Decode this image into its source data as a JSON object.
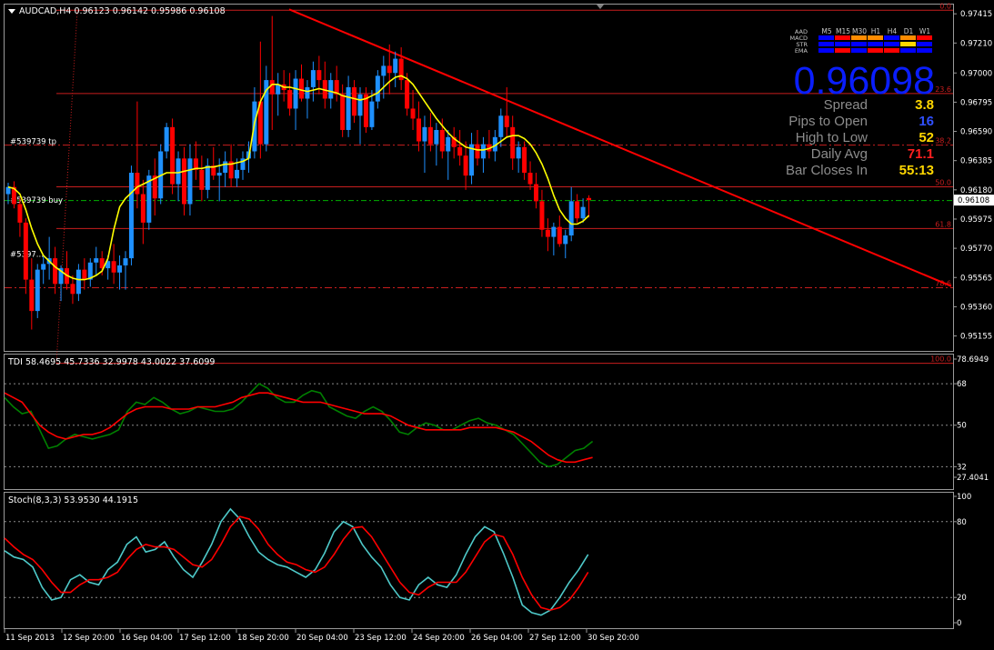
{
  "header": {
    "symbol_line": "AUDCAD,H4  0.96123 0.96142 0.95986 0.96108"
  },
  "chart_data": [
    {
      "type": "candlestick",
      "symbol": "AUDCAD",
      "timeframe": "H4",
      "ohlc_header": {
        "open": 0.96123,
        "high": 0.96142,
        "low": 0.95986,
        "close": 0.96108
      },
      "ylim": [
        0.9505,
        0.9748
      ],
      "y_ticks": [
        "0.97415",
        "0.97210",
        "0.97000",
        "0.96795",
        "0.96590",
        "0.96385",
        "0.96180",
        "0.95975",
        "0.95770",
        "0.95565",
        "0.95360",
        "0.95155"
      ],
      "current_price_label": "0.96108",
      "colors": {
        "bull": "#1e90ff",
        "bear": "#ff0000",
        "ma": "#ffff00",
        "trend": "#ff0000",
        "fib": "#c81e1e",
        "grid": "#808080"
      },
      "candles_ohlc": [
        [
          0.9615,
          0.9623,
          0.9608,
          0.962
        ],
        [
          0.962,
          0.9624,
          0.9605,
          0.9608
        ],
        [
          0.9608,
          0.9612,
          0.9585,
          0.9595
        ],
        [
          0.9595,
          0.9598,
          0.9545,
          0.9555
        ],
        [
          0.9555,
          0.957,
          0.952,
          0.9533
        ],
        [
          0.9533,
          0.9566,
          0.9528,
          0.9562
        ],
        [
          0.9562,
          0.9572,
          0.9552,
          0.9566
        ],
        [
          0.9566,
          0.9585,
          0.9555,
          0.957
        ],
        [
          0.957,
          0.9578,
          0.9545,
          0.9552
        ],
        [
          0.9552,
          0.9565,
          0.954,
          0.9563
        ],
        [
          0.9563,
          0.9575,
          0.9548,
          0.9552
        ],
        [
          0.9552,
          0.9558,
          0.9538,
          0.9545
        ],
        [
          0.9545,
          0.9566,
          0.954,
          0.9562
        ],
        [
          0.9562,
          0.957,
          0.9548,
          0.9555
        ],
        [
          0.9555,
          0.957,
          0.955,
          0.9567
        ],
        [
          0.9567,
          0.9578,
          0.9558,
          0.957
        ],
        [
          0.957,
          0.9575,
          0.9558,
          0.9563
        ],
        [
          0.9563,
          0.9572,
          0.9555,
          0.9568
        ],
        [
          0.9568,
          0.958,
          0.9552,
          0.956
        ],
        [
          0.956,
          0.9572,
          0.9548,
          0.9565
        ],
        [
          0.9565,
          0.9575,
          0.9548,
          0.957
        ],
        [
          0.957,
          0.9635,
          0.9565,
          0.963
        ],
        [
          0.963,
          0.968,
          0.9605,
          0.9615
        ],
        [
          0.9615,
          0.9625,
          0.958,
          0.9595
        ],
        [
          0.9595,
          0.9632,
          0.959,
          0.9628
        ],
        [
          0.9628,
          0.964,
          0.96,
          0.9612
        ],
        [
          0.9612,
          0.965,
          0.9608,
          0.9645
        ],
        [
          0.9645,
          0.9665,
          0.964,
          0.9662
        ],
        [
          0.9662,
          0.9668,
          0.9615,
          0.9622
        ],
        [
          0.9622,
          0.9645,
          0.961,
          0.964
        ],
        [
          0.964,
          0.9648,
          0.96,
          0.9608
        ],
        [
          0.9608,
          0.965,
          0.96,
          0.964
        ],
        [
          0.964,
          0.9652,
          0.9625,
          0.9632
        ],
        [
          0.9632,
          0.9642,
          0.961,
          0.9618
        ],
        [
          0.9618,
          0.964,
          0.9612,
          0.9635
        ],
        [
          0.9635,
          0.9648,
          0.9625,
          0.9628
        ],
        [
          0.9628,
          0.964,
          0.961,
          0.963
        ],
        [
          0.963,
          0.9645,
          0.962,
          0.9638
        ],
        [
          0.9638,
          0.965,
          0.962,
          0.9626
        ],
        [
          0.9626,
          0.964,
          0.962,
          0.9632
        ],
        [
          0.9632,
          0.9645,
          0.9625,
          0.964
        ],
        [
          0.964,
          0.9652,
          0.963,
          0.9645
        ],
        [
          0.9645,
          0.969,
          0.964,
          0.968
        ],
        [
          0.968,
          0.9722,
          0.964,
          0.965
        ],
        [
          0.965,
          0.9705,
          0.9645,
          0.9695
        ],
        [
          0.9695,
          0.974,
          0.966,
          0.9685
        ],
        [
          0.9685,
          0.97,
          0.967,
          0.9692
        ],
        [
          0.9692,
          0.9702,
          0.968,
          0.9688
        ],
        [
          0.9688,
          0.97,
          0.967,
          0.9675
        ],
        [
          0.9675,
          0.9702,
          0.966,
          0.9696
        ],
        [
          0.9696,
          0.9706,
          0.968,
          0.9682
        ],
        [
          0.9682,
          0.9695,
          0.9668,
          0.969
        ],
        [
          0.969,
          0.9708,
          0.968,
          0.9702
        ],
        [
          0.9702,
          0.9712,
          0.9685,
          0.9695
        ],
        [
          0.9695,
          0.9708,
          0.9675,
          0.9682
        ],
        [
          0.9682,
          0.97,
          0.9675,
          0.9695
        ],
        [
          0.9695,
          0.9705,
          0.968,
          0.9685
        ],
        [
          0.9685,
          0.9692,
          0.9655,
          0.966
        ],
        [
          0.966,
          0.9698,
          0.9655,
          0.969
        ],
        [
          0.969,
          0.9695,
          0.9665,
          0.967
        ],
        [
          0.967,
          0.969,
          0.965,
          0.9685
        ],
        [
          0.9685,
          0.969,
          0.9658,
          0.9662
        ],
        [
          0.9662,
          0.9688,
          0.966,
          0.968
        ],
        [
          0.968,
          0.9702,
          0.9675,
          0.9698
        ],
        [
          0.9698,
          0.9712,
          0.9682,
          0.9705
        ],
        [
          0.9705,
          0.972,
          0.9685,
          0.97
        ],
        [
          0.97,
          0.9715,
          0.969,
          0.971
        ],
        [
          0.971,
          0.9718,
          0.9688,
          0.9695
        ],
        [
          0.9695,
          0.97,
          0.967,
          0.9675
        ],
        [
          0.9675,
          0.9688,
          0.966,
          0.9668
        ],
        [
          0.9668,
          0.968,
          0.9645,
          0.9652
        ],
        [
          0.9652,
          0.967,
          0.963,
          0.9662
        ],
        [
          0.9662,
          0.9672,
          0.9645,
          0.965
        ],
        [
          0.965,
          0.9665,
          0.9635,
          0.966
        ],
        [
          0.966,
          0.9668,
          0.964,
          0.9645
        ],
        [
          0.9645,
          0.966,
          0.9625,
          0.9655
        ],
        [
          0.9655,
          0.9662,
          0.964,
          0.9648
        ],
        [
          0.9648,
          0.966,
          0.9635,
          0.9642
        ],
        [
          0.9642,
          0.9652,
          0.9618,
          0.9628
        ],
        [
          0.9628,
          0.9658,
          0.9622,
          0.965
        ],
        [
          0.965,
          0.966,
          0.9635,
          0.964
        ],
        [
          0.964,
          0.9655,
          0.963,
          0.965
        ],
        [
          0.965,
          0.966,
          0.964,
          0.9645
        ],
        [
          0.9645,
          0.966,
          0.9638,
          0.9655
        ],
        [
          0.9655,
          0.9675,
          0.9648,
          0.967
        ],
        [
          0.967,
          0.969,
          0.9655,
          0.9662
        ],
        [
          0.9662,
          0.967,
          0.9632,
          0.964
        ],
        [
          0.964,
          0.9652,
          0.963,
          0.9648
        ],
        [
          0.9648,
          0.9652,
          0.9625,
          0.963
        ],
        [
          0.963,
          0.9638,
          0.9618,
          0.9622
        ],
        [
          0.9622,
          0.963,
          0.9605,
          0.961
        ],
        [
          0.961,
          0.9618,
          0.9585,
          0.959
        ],
        [
          0.959,
          0.9598,
          0.9575,
          0.9585
        ],
        [
          0.9585,
          0.9595,
          0.9572,
          0.9592
        ],
        [
          0.9592,
          0.96,
          0.9578,
          0.958
        ],
        [
          0.958,
          0.959,
          0.957,
          0.9586
        ],
        [
          0.9586,
          0.962,
          0.9582,
          0.961
        ],
        [
          0.961,
          0.9615,
          0.9595,
          0.9598
        ],
        [
          0.9598,
          0.9612,
          0.9595,
          0.9606
        ],
        [
          0.96123,
          0.96142,
          0.95986,
          0.96108
        ]
      ],
      "ma_values": [
        0.962,
        0.9619,
        0.9615,
        0.9604,
        0.9591,
        0.958,
        0.9572,
        0.9568,
        0.9564,
        0.9561,
        0.9558,
        0.9556,
        0.9555,
        0.9555,
        0.9556,
        0.9558,
        0.9561,
        0.957,
        0.959,
        0.9606,
        0.9612,
        0.9616,
        0.962,
        0.9622,
        0.9624,
        0.9626,
        0.9628,
        0.963,
        0.963,
        0.963,
        0.9631,
        0.9632,
        0.9633,
        0.9633,
        0.9634,
        0.9634,
        0.9635,
        0.9636,
        0.9636,
        0.9637,
        0.9638,
        0.964,
        0.9665,
        0.968,
        0.9688,
        0.9692,
        0.9692,
        0.969,
        0.969,
        0.9689,
        0.9688,
        0.9687,
        0.9688,
        0.9689,
        0.9688,
        0.9687,
        0.9686,
        0.9684,
        0.9683,
        0.9682,
        0.9681,
        0.9682,
        0.9684,
        0.9686,
        0.969,
        0.9694,
        0.9697,
        0.9698,
        0.9696,
        0.9692,
        0.9686,
        0.968,
        0.9674,
        0.9668,
        0.9663,
        0.9658,
        0.9654,
        0.9651,
        0.9648,
        0.9647,
        0.9646,
        0.9646,
        0.9647,
        0.9649,
        0.9652,
        0.9655,
        0.9656,
        0.9656,
        0.9654,
        0.965,
        0.9644,
        0.9636,
        0.9626,
        0.9614,
        0.9604,
        0.9598,
        0.9594,
        0.9594,
        0.9596,
        0.96
      ],
      "fib_levels": [
        {
          "label": "0.0",
          "price": 0.9744
        },
        {
          "label": "23.6",
          "price": 0.96856
        },
        {
          "label": "38.2",
          "price": 0.96494
        },
        {
          "label": "50.0",
          "price": 0.96201
        },
        {
          "label": "61.8",
          "price": 0.95909
        },
        {
          "label": "78.6",
          "price": 0.95493
        },
        {
          "label": "100.0",
          "price": 0.94963
        }
      ],
      "order_labels": [
        {
          "text": "#539739 tp",
          "price": 0.9652
        },
        {
          "text": "#539739 buy",
          "price": 0.9611
        },
        {
          "text": "#5397...",
          "price": 0.9573
        }
      ]
    },
    {
      "type": "line",
      "name": "TDI",
      "title": "TDI 58.4695 45.7336 32.9978 43.0022 37.6099",
      "ylim": [
        27.4041,
        78.6949
      ],
      "y_ticks": [
        "78.6949",
        "68",
        "50",
        "32",
        "27.4041"
      ],
      "levels": [
        68,
        50,
        32
      ],
      "series": [
        {
          "color": "#008000",
          "values": [
            62,
            58,
            55,
            56,
            48,
            40,
            41,
            44,
            46,
            45,
            44,
            45,
            46,
            48,
            56,
            60,
            59,
            62,
            60,
            57,
            55,
            56,
            58,
            57,
            56,
            56,
            57,
            60,
            64,
            68,
            66,
            62,
            60,
            60,
            63,
            65,
            64,
            58,
            56,
            54,
            53,
            56,
            58,
            56,
            52,
            47,
            46,
            49,
            51,
            50,
            48,
            48,
            50,
            52,
            53,
            51,
            50,
            48,
            46,
            42,
            38,
            34,
            32,
            33,
            36,
            39,
            40,
            43
          ]
        },
        {
          "color": "#ff0000",
          "values": [
            64,
            62,
            60,
            55,
            50,
            47,
            45,
            44,
            45,
            46,
            46,
            47,
            49,
            52,
            55,
            57,
            58,
            58,
            58,
            57,
            57,
            57,
            58,
            58,
            58,
            59,
            60,
            62,
            63,
            64,
            64,
            63,
            62,
            61,
            60,
            60,
            60,
            59,
            58,
            57,
            56,
            55,
            55,
            55,
            54,
            52,
            50,
            49,
            48,
            48,
            48,
            48,
            48,
            49,
            49,
            49,
            49,
            48,
            47,
            45,
            43,
            40,
            37,
            35,
            34,
            34,
            35,
            36
          ]
        }
      ]
    },
    {
      "type": "line",
      "name": "Stoch",
      "title": "Stoch(8,3,3) 53.9530 44.1915",
      "ylim": [
        0,
        100
      ],
      "y_ticks": [
        "100",
        "80",
        "20",
        "0"
      ],
      "levels": [
        80,
        20
      ],
      "series": [
        {
          "color": "#4ec9c9",
          "values": [
            57,
            52,
            50,
            44,
            28,
            18,
            20,
            34,
            38,
            32,
            30,
            42,
            48,
            62,
            68,
            56,
            58,
            64,
            52,
            42,
            36,
            48,
            62,
            80,
            90,
            82,
            68,
            56,
            50,
            46,
            44,
            40,
            36,
            42,
            55,
            72,
            80,
            76,
            62,
            52,
            44,
            30,
            20,
            18,
            30,
            36,
            30,
            28,
            38,
            54,
            68,
            76,
            72,
            55,
            36,
            14,
            8,
            6,
            10,
            20,
            32,
            42,
            54
          ]
        },
        {
          "color": "#ff0000",
          "values": [
            67,
            60,
            54,
            50,
            42,
            32,
            24,
            24,
            30,
            34,
            34,
            36,
            40,
            50,
            58,
            62,
            60,
            60,
            58,
            52,
            46,
            44,
            50,
            62,
            76,
            84,
            82,
            74,
            62,
            54,
            48,
            46,
            42,
            40,
            44,
            54,
            66,
            75,
            76,
            68,
            56,
            44,
            32,
            24,
            22,
            28,
            32,
            32,
            32,
            40,
            52,
            64,
            70,
            68,
            54,
            36,
            22,
            12,
            10,
            12,
            18,
            28,
            40
          ]
        }
      ]
    },
    {
      "type": "x_axis",
      "tick_labels": [
        "11 Sep 2013",
        "12 Sep 20:00",
        "16 Sep 04:00",
        "17 Sep 12:00",
        "18 Sep 20:00",
        "20 Sep 04:00",
        "23 Sep 12:00",
        "24 Sep 20:00",
        "26 Sep 04:00",
        "27 Sep 12:00",
        "30 Sep 20:00"
      ]
    },
    {
      "type": "table",
      "name": "trend_panel",
      "columns": [
        "M5",
        "M15",
        "M30",
        "H1",
        "H4",
        "D1",
        "W1"
      ],
      "rows": [
        {
          "label": "AAD",
          "cells": []
        },
        {
          "label": "MACD",
          "cells": [
            "#0000ff",
            "#ff0000",
            "#ff8c00",
            "#ff8c00",
            "#0000ff",
            "#ff8c00",
            "#ff0000"
          ]
        },
        {
          "label": "STR",
          "cells": [
            "#0000ff",
            "#0000ff",
            "#0000ff",
            "#0000ff",
            "#0000ff",
            "#ffd700",
            "#0000ff"
          ]
        },
        {
          "label": "EMA",
          "cells": [
            "#0000ff",
            "#ff0000",
            "#0000ff",
            "#ff0000",
            "#ff0000",
            "#0000ff",
            "#0000ff"
          ]
        }
      ]
    }
  ],
  "info_panel": {
    "big_price": "0.96098",
    "rows": [
      {
        "label": "Spread",
        "value": "3.8",
        "color": "#ffd700"
      },
      {
        "label": "Pips to Open",
        "value": "16",
        "color": "#3050ff"
      },
      {
        "label": "High to Low",
        "value": "52",
        "color": "#ffd700"
      },
      {
        "label": "Daily Avg",
        "value": "71.1",
        "color": "#ff2020"
      },
      {
        "label": "Bar Closes In",
        "value": "55:13",
        "color": "#ffd700"
      }
    ]
  }
}
